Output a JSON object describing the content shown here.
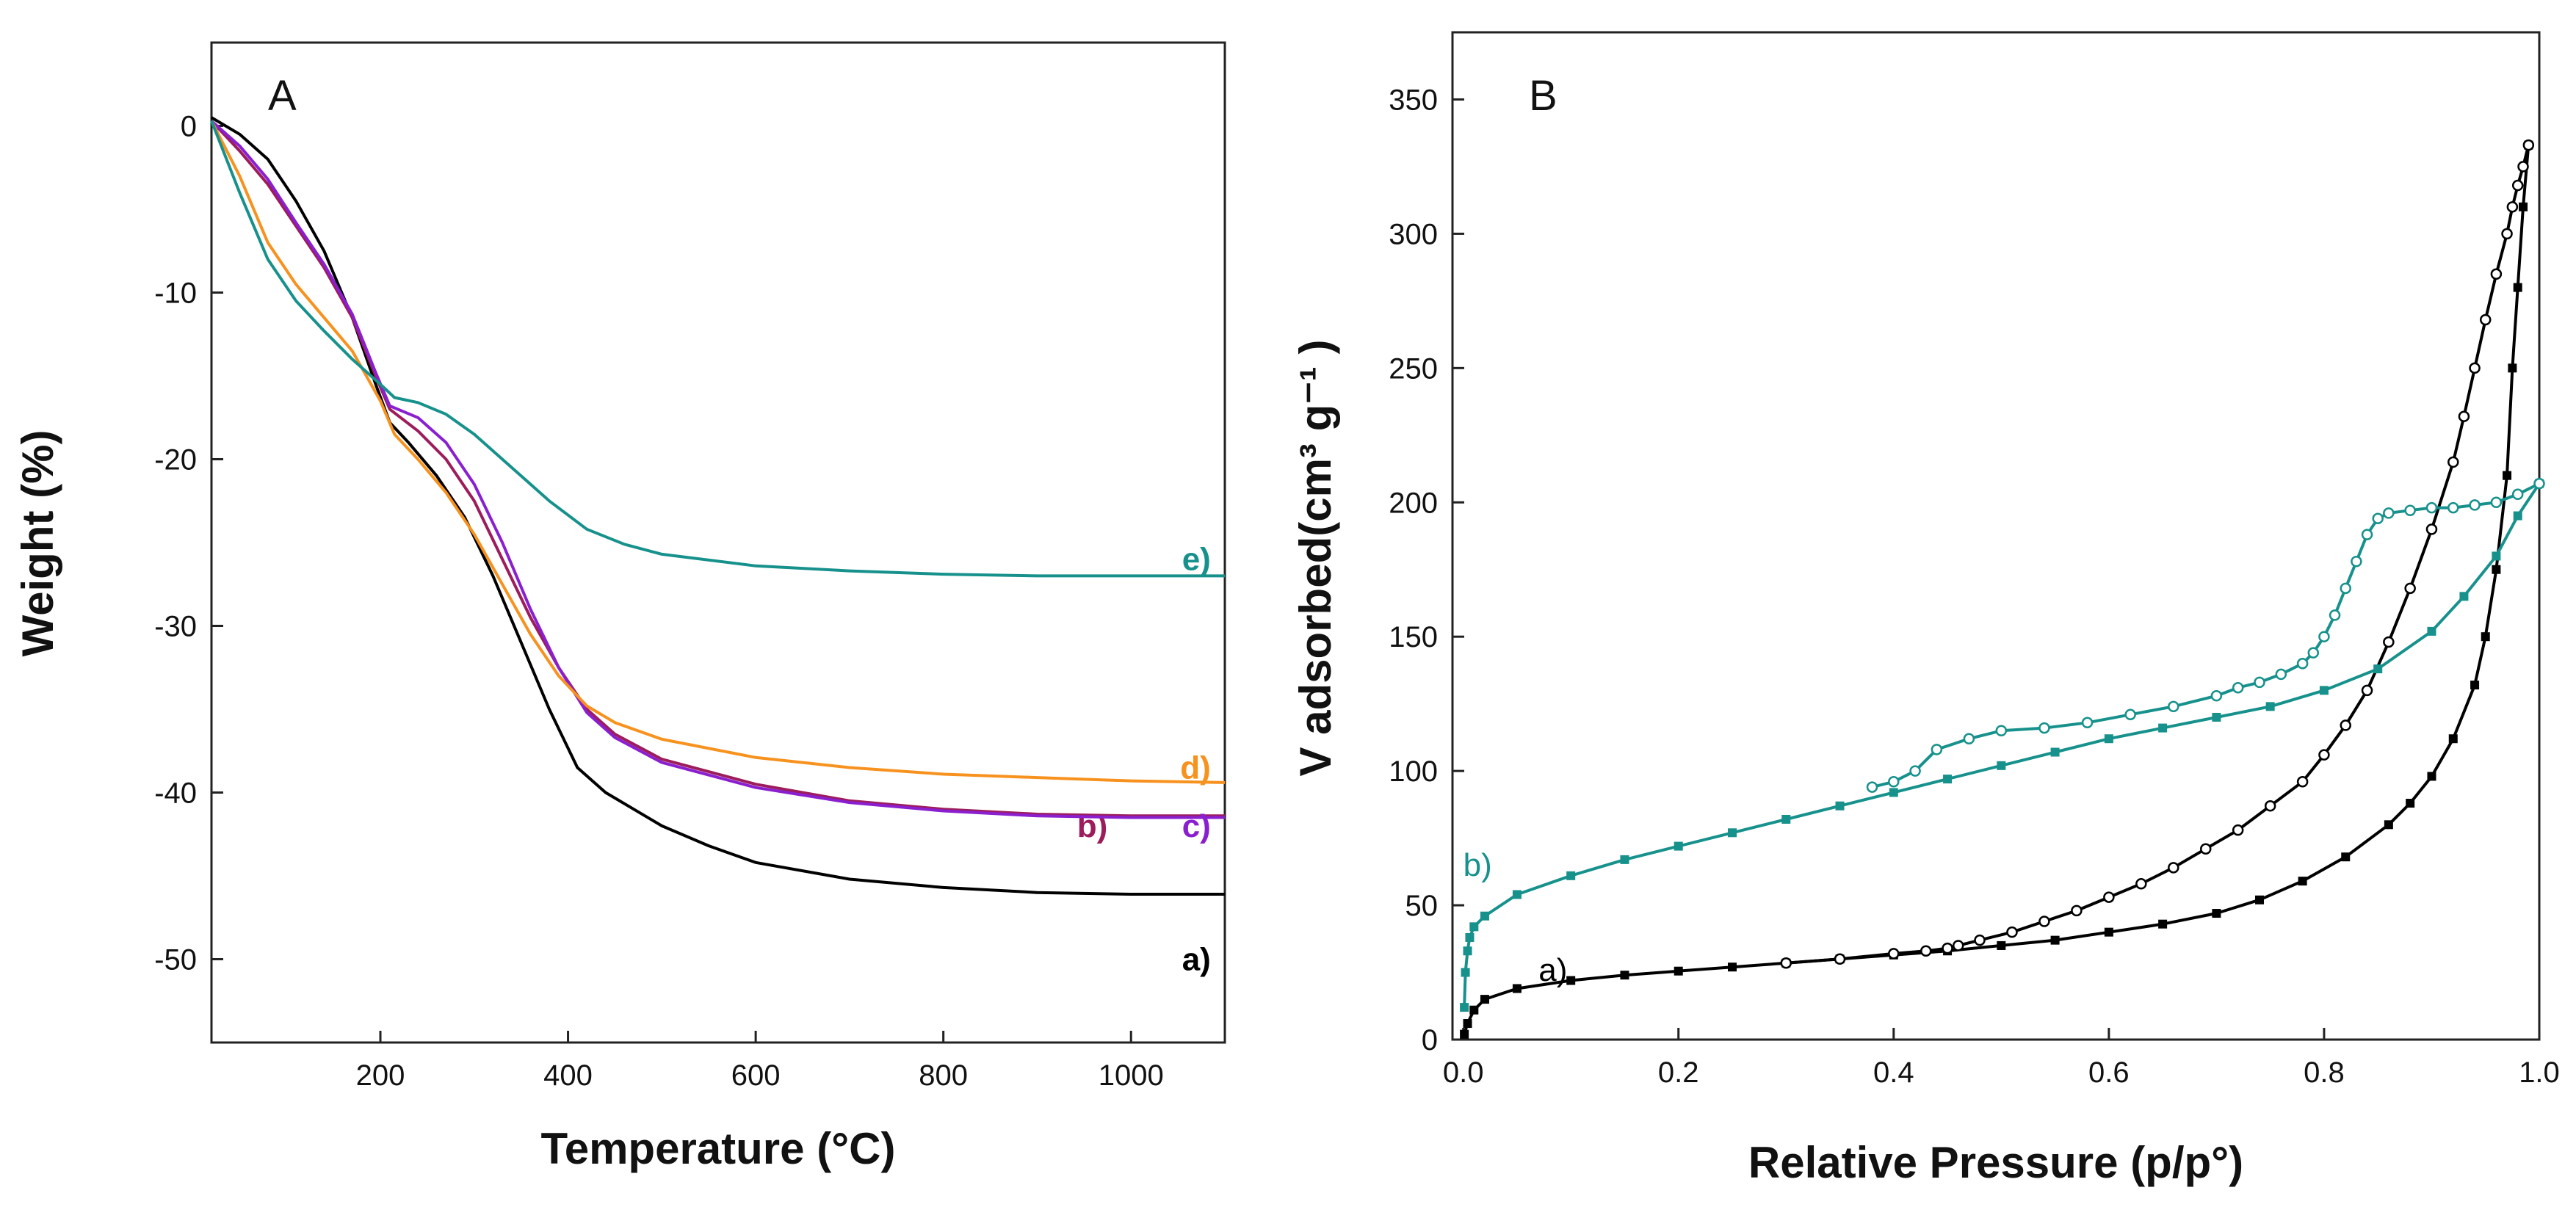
{
  "chart_data": [
    {
      "id": "A",
      "type": "line",
      "panel_label": "A",
      "xlabel": "Temperature (°C)",
      "ylabel": "Weight (%)",
      "xlim": [
        20,
        1100
      ],
      "ylim": [
        -55,
        5
      ],
      "xticks": [
        200,
        400,
        600,
        800,
        1000
      ],
      "yticks": [
        0,
        -10,
        -20,
        -30,
        -40,
        -50
      ],
      "series": [
        {
          "name": "a)",
          "color": "#000000",
          "label_anchor": [
            1085,
            -50
          ],
          "x": [
            20,
            50,
            80,
            110,
            140,
            170,
            195,
            210,
            230,
            260,
            290,
            320,
            350,
            380,
            410,
            440,
            470,
            500,
            550,
            600,
            700,
            800,
            900,
            1000,
            1100
          ],
          "y": [
            0.5,
            -0.5,
            -2,
            -4.5,
            -7.5,
            -11.5,
            -15.5,
            -17.8,
            -19,
            -21,
            -23.5,
            -27,
            -31,
            -35,
            -38.5,
            -40,
            -41,
            -42,
            -43.2,
            -44.2,
            -45.2,
            -45.7,
            -46,
            -46.1,
            -46.1
          ]
        },
        {
          "name": "b)",
          "color": "#9c1c5c",
          "label_anchor": [
            975,
            -42
          ],
          "x": [
            20,
            50,
            80,
            110,
            140,
            170,
            195,
            210,
            240,
            270,
            300,
            330,
            360,
            390,
            420,
            450,
            500,
            600,
            700,
            800,
            900,
            1000,
            1100
          ],
          "y": [
            0.3,
            -1.5,
            -3.5,
            -6,
            -8.5,
            -11.5,
            -15,
            -17,
            -18.3,
            -20,
            -22.5,
            -26,
            -29.5,
            -32.5,
            -35,
            -36.5,
            -38,
            -39.5,
            -40.5,
            -41,
            -41.3,
            -41.4,
            -41.4
          ]
        },
        {
          "name": "c)",
          "color": "#8a1fd0",
          "label_anchor": [
            1085,
            -42
          ],
          "x": [
            20,
            50,
            80,
            110,
            140,
            170,
            195,
            210,
            240,
            270,
            300,
            330,
            360,
            390,
            420,
            450,
            500,
            600,
            700,
            800,
            900,
            1000,
            1100
          ],
          "y": [
            0.3,
            -1.2,
            -3.2,
            -5.8,
            -8.3,
            -11.3,
            -14.8,
            -16.8,
            -17.5,
            -19,
            -21.5,
            -25,
            -29,
            -32.5,
            -35.2,
            -36.7,
            -38.2,
            -39.7,
            -40.6,
            -41.1,
            -41.4,
            -41.5,
            -41.5
          ]
        },
        {
          "name": "d)",
          "color": "#f7921e",
          "label_anchor": [
            1085,
            -38.5
          ],
          "x": [
            20,
            50,
            80,
            110,
            140,
            170,
            200,
            215,
            240,
            270,
            300,
            330,
            360,
            390,
            420,
            450,
            500,
            600,
            700,
            800,
            900,
            1000,
            1100
          ],
          "y": [
            0.3,
            -3,
            -7,
            -9.5,
            -11.5,
            -13.5,
            -16.5,
            -18.5,
            -20,
            -22,
            -24.5,
            -27.5,
            -30.5,
            -33,
            -34.8,
            -35.8,
            -36.8,
            -37.9,
            -38.5,
            -38.9,
            -39.1,
            -39.3,
            -39.4
          ]
        },
        {
          "name": "e)",
          "color": "#17918c",
          "label_anchor": [
            1085,
            -26
          ],
          "x": [
            20,
            50,
            80,
            110,
            140,
            170,
            200,
            215,
            240,
            270,
            300,
            340,
            380,
            420,
            460,
            500,
            600,
            700,
            800,
            900,
            1000,
            1100
          ],
          "y": [
            0.3,
            -4,
            -8,
            -10.5,
            -12.3,
            -14,
            -15.5,
            -16.3,
            -16.6,
            -17.3,
            -18.5,
            -20.5,
            -22.5,
            -24.2,
            -25.1,
            -25.7,
            -26.4,
            -26.7,
            -26.9,
            -27,
            -27,
            -27
          ]
        }
      ]
    },
    {
      "id": "B",
      "type": "line",
      "panel_label": "B",
      "xlabel": "Relative Pressure (p/p°)",
      "ylabel": "V adsorbed(cm³ g⁻¹ )",
      "xlim": [
        -0.01,
        1.0
      ],
      "ylim": [
        0,
        375
      ],
      "xticks": [
        0.0,
        0.2,
        0.4,
        0.6,
        0.8,
        1.0
      ],
      "xtick_labels": [
        "0.0",
        "0.2",
        "0.4",
        "0.6",
        "0.8",
        "1.0"
      ],
      "yticks": [
        0,
        50,
        100,
        150,
        200,
        250,
        300,
        350
      ],
      "series": [
        {
          "name": "a) adsorption",
          "label": "a)",
          "color": "#000000",
          "marker": "filled-square",
          "label_anchor": [
            0.07,
            26
          ],
          "x": [
            0.001,
            0.004,
            0.01,
            0.02,
            0.05,
            0.1,
            0.15,
            0.2,
            0.25,
            0.3,
            0.35,
            0.4,
            0.45,
            0.5,
            0.55,
            0.6,
            0.65,
            0.7,
            0.74,
            0.78,
            0.82,
            0.86,
            0.88,
            0.9,
            0.92,
            0.94,
            0.95,
            0.96,
            0.97,
            0.975,
            0.98,
            0.985,
            0.99
          ],
          "y": [
            2,
            6,
            11,
            15,
            19,
            22,
            24,
            25.5,
            27,
            28.5,
            30,
            31.5,
            33,
            35,
            37,
            40,
            43,
            47,
            52,
            59,
            68,
            80,
            88,
            98,
            112,
            132,
            150,
            175,
            210,
            250,
            280,
            310,
            333
          ]
        },
        {
          "name": "a) desorption",
          "label": "",
          "color": "#000000",
          "marker": "open-circle",
          "label_anchor": null,
          "x": [
            0.99,
            0.985,
            0.98,
            0.975,
            0.97,
            0.96,
            0.95,
            0.94,
            0.93,
            0.92,
            0.9,
            0.88,
            0.86,
            0.84,
            0.82,
            0.8,
            0.78,
            0.75,
            0.72,
            0.69,
            0.66,
            0.63,
            0.6,
            0.57,
            0.54,
            0.51,
            0.48,
            0.46,
            0.45,
            0.43,
            0.4,
            0.35,
            0.3
          ],
          "y": [
            333,
            325,
            318,
            310,
            300,
            285,
            268,
            250,
            232,
            215,
            190,
            168,
            148,
            130,
            117,
            106,
            96,
            87,
            78,
            71,
            64,
            58,
            53,
            48,
            44,
            40,
            37,
            35,
            34,
            33,
            32,
            30,
            28.5
          ]
        },
        {
          "name": "b) adsorption",
          "label": "b)",
          "color": "#17918c",
          "marker": "filled-square",
          "label_anchor": [
            0.0,
            65
          ],
          "x": [
            0.001,
            0.002,
            0.004,
            0.006,
            0.01,
            0.02,
            0.05,
            0.1,
            0.15,
            0.2,
            0.25,
            0.3,
            0.35,
            0.4,
            0.45,
            0.5,
            0.55,
            0.6,
            0.65,
            0.7,
            0.75,
            0.8,
            0.85,
            0.9,
            0.93,
            0.96,
            0.98,
            1.0
          ],
          "y": [
            12,
            25,
            33,
            38,
            42,
            46,
            54,
            61,
            67,
            72,
            77,
            82,
            87,
            92,
            97,
            102,
            107,
            112,
            116,
            120,
            124,
            130,
            138,
            152,
            165,
            180,
            195,
            207
          ]
        },
        {
          "name": "b) desorption",
          "label": "",
          "color": "#17918c",
          "marker": "open-circle",
          "label_anchor": null,
          "x": [
            1.0,
            0.98,
            0.96,
            0.94,
            0.92,
            0.9,
            0.88,
            0.86,
            0.85,
            0.84,
            0.83,
            0.82,
            0.81,
            0.8,
            0.79,
            0.78,
            0.76,
            0.74,
            0.72,
            0.7,
            0.66,
            0.62,
            0.58,
            0.54,
            0.5,
            0.47,
            0.44,
            0.42,
            0.4,
            0.38
          ],
          "y": [
            207,
            203,
            200,
            199,
            198,
            198,
            197,
            196,
            194,
            188,
            178,
            168,
            158,
            150,
            144,
            140,
            136,
            133,
            131,
            128,
            124,
            121,
            118,
            116,
            115,
            112,
            108,
            100,
            96,
            94
          ]
        }
      ]
    }
  ]
}
